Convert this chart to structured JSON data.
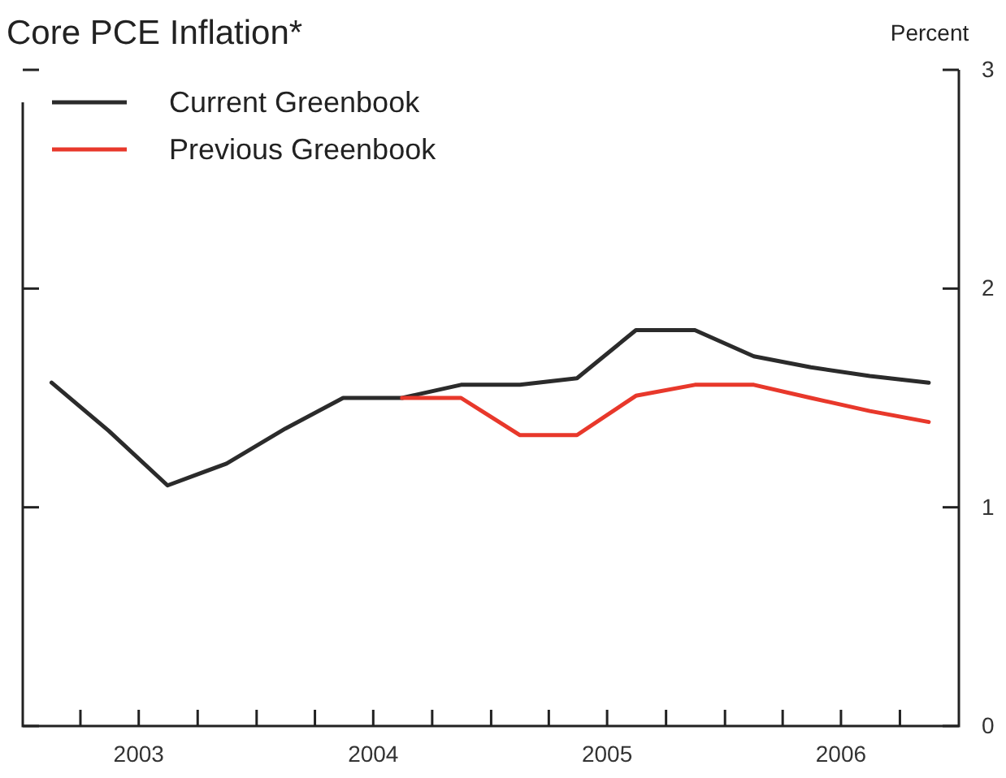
{
  "chart_data": {
    "type": "line",
    "title": "Core PCE Inflation*",
    "ylabel": "Percent",
    "xlim": [
      "2003-01-01",
      "2007-01-01"
    ],
    "xticks": [
      {
        "value": "2003-04-01",
        "label": null
      },
      {
        "value": "2003-07-01",
        "label": "2003"
      },
      {
        "value": "2003-10-01",
        "label": null
      },
      {
        "value": "2004-01-01",
        "label": null
      },
      {
        "value": "2004-04-01",
        "label": null
      },
      {
        "value": "2004-07-01",
        "label": "2004"
      },
      {
        "value": "2004-10-01",
        "label": null
      },
      {
        "value": "2005-01-01",
        "label": null
      },
      {
        "value": "2005-04-01",
        "label": null
      },
      {
        "value": "2005-07-01",
        "label": "2005"
      },
      {
        "value": "2005-10-01",
        "label": null
      },
      {
        "value": "2006-01-01",
        "label": null
      },
      {
        "value": "2006-04-01",
        "label": null
      },
      {
        "value": "2006-07-01",
        "label": "2006"
      },
      {
        "value": "2006-10-01",
        "label": null
      }
    ],
    "ylim": [
      0,
      3
    ],
    "yticks": [
      0,
      1,
      2,
      3
    ],
    "grid": false,
    "legend": "top left",
    "line_style": "solid",
    "marker": "none",
    "x": [
      "2003-02-15",
      "2003-05-15",
      "2003-08-15",
      "2003-11-15",
      "2004-02-15",
      "2004-05-15",
      "2004-08-15",
      "2004-11-15",
      "2005-02-15",
      "2005-05-15",
      "2005-08-15",
      "2005-11-15",
      "2006-02-15",
      "2006-05-15",
      "2006-08-15",
      "2006-11-15"
    ],
    "series": [
      {
        "name": "Current Greenbook",
        "color": "#2b2b2b",
        "values": [
          1.57,
          1.35,
          1.1,
          1.2,
          1.36,
          1.5,
          1.5,
          1.56,
          1.56,
          1.59,
          1.81,
          1.81,
          1.69,
          1.64,
          1.6,
          1.57
        ]
      },
      {
        "name": "Previous Greenbook",
        "color": "#e8382b",
        "values": [
          null,
          null,
          null,
          null,
          null,
          null,
          1.5,
          1.5,
          1.33,
          1.33,
          1.51,
          1.56,
          1.56,
          1.5,
          1.44,
          1.39
        ]
      }
    ]
  }
}
